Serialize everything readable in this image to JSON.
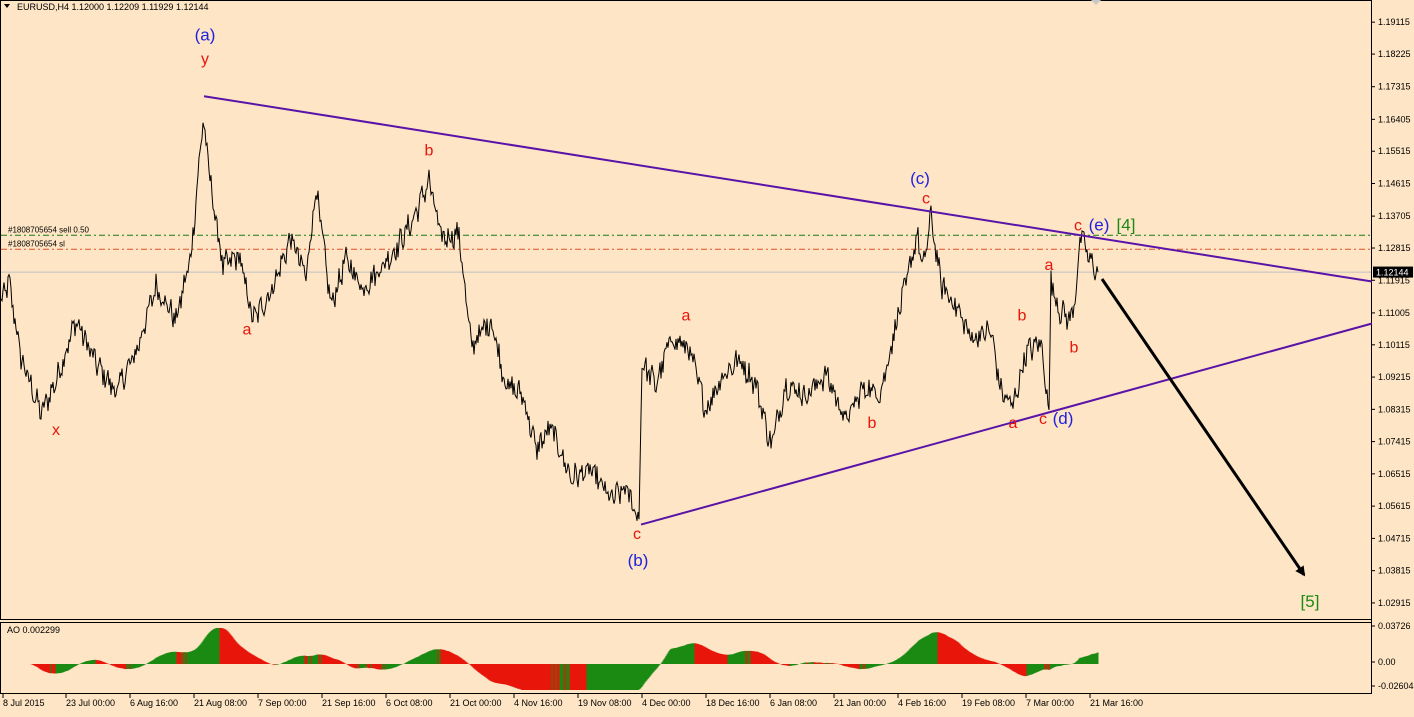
{
  "header": {
    "symbol": "EURUSD,H4",
    "open": "1.12000",
    "high": "1.12209",
    "low": "1.11929",
    "close": "1.12144"
  },
  "levels": {
    "sell_label": "#1808705654 sell 0.50",
    "sl_label": "#1808705654 sl",
    "current_price_tag": "1.12144"
  },
  "oscillator": {
    "title": "AO 0.002299",
    "ticks": [
      "0.03726",
      "0.00",
      "-0.02604"
    ]
  },
  "chart_data": {
    "type": "line",
    "title": "EURUSD,H4",
    "y_ticks": [
      "1.19115",
      "1.18225",
      "1.17315",
      "1.16405",
      "1.15515",
      "1.14615",
      "1.13705",
      "1.12815",
      "1.11915",
      "1.11005",
      "1.10115",
      "1.09215",
      "1.08315",
      "1.07415",
      "1.06515",
      "1.05615",
      "1.04715",
      "1.03815",
      "1.02915"
    ],
    "x_ticks": [
      "8 Jul 2015",
      "23 Jul 00:00",
      "6 Aug 16:00",
      "21 Aug 08:00",
      "7 Sep 00:00",
      "21 Sep 16:00",
      "6 Oct 08:00",
      "21 Oct 00:00",
      "4 Nov 16:00",
      "19 Nov 08:00",
      "4 Dec 00:00",
      "18 Dec 16:00",
      "6 Jan 08:00",
      "21 Jan 00:00",
      "4 Feb 16:00",
      "19 Feb 08:00",
      "7 Mar 00:00",
      "21 Mar 16:00"
    ],
    "ylim": [
      1.0255,
      1.1965
    ],
    "current_price": 1.12144,
    "sell_level": 1.1317,
    "sl_level": 1.1278,
    "anchors": [
      {
        "i": 0,
        "v": 1.113
      },
      {
        "i": 8,
        "v": 1.1185
      },
      {
        "i": 20,
        "v": 1.0975
      },
      {
        "i": 40,
        "v": 1.082
      },
      {
        "i": 55,
        "v": 1.091
      },
      {
        "i": 75,
        "v": 1.108
      },
      {
        "i": 95,
        "v": 1.096
      },
      {
        "i": 115,
        "v": 1.088
      },
      {
        "i": 135,
        "v": 1.099
      },
      {
        "i": 155,
        "v": 1.1175
      },
      {
        "i": 175,
        "v": 1.108
      },
      {
        "i": 190,
        "v": 1.126
      },
      {
        "i": 202,
        "v": 1.164
      },
      {
        "i": 212,
        "v": 1.141
      },
      {
        "i": 222,
        "v": 1.123
      },
      {
        "i": 238,
        "v": 1.126
      },
      {
        "i": 252,
        "v": 1.108
      },
      {
        "i": 270,
        "v": 1.116
      },
      {
        "i": 290,
        "v": 1.131
      },
      {
        "i": 305,
        "v": 1.12
      },
      {
        "i": 315,
        "v": 1.145
      },
      {
        "i": 330,
        "v": 1.112
      },
      {
        "i": 345,
        "v": 1.125
      },
      {
        "i": 362,
        "v": 1.117
      },
      {
        "i": 378,
        "v": 1.122
      },
      {
        "i": 395,
        "v": 1.128
      },
      {
        "i": 412,
        "v": 1.136
      },
      {
        "i": 428,
        "v": 1.147
      },
      {
        "i": 440,
        "v": 1.131
      },
      {
        "i": 458,
        "v": 1.132
      },
      {
        "i": 470,
        "v": 1.101
      },
      {
        "i": 490,
        "v": 1.108
      },
      {
        "i": 505,
        "v": 1.09
      },
      {
        "i": 522,
        "v": 1.087
      },
      {
        "i": 535,
        "v": 1.072
      },
      {
        "i": 550,
        "v": 1.078
      },
      {
        "i": 570,
        "v": 1.064
      },
      {
        "i": 590,
        "v": 1.066
      },
      {
        "i": 610,
        "v": 1.058
      },
      {
        "i": 625,
        "v": 1.061
      },
      {
        "i": 638,
        "v": 1.0525
      },
      {
        "i": 641,
        "v": 1.096
      },
      {
        "i": 655,
        "v": 1.09
      },
      {
        "i": 670,
        "v": 1.103
      },
      {
        "i": 688,
        "v": 1.1
      },
      {
        "i": 705,
        "v": 1.083
      },
      {
        "i": 720,
        "v": 1.092
      },
      {
        "i": 738,
        "v": 1.097
      },
      {
        "i": 755,
        "v": 1.09
      },
      {
        "i": 770,
        "v": 1.073
      },
      {
        "i": 785,
        "v": 1.09
      },
      {
        "i": 805,
        "v": 1.087
      },
      {
        "i": 825,
        "v": 1.093
      },
      {
        "i": 845,
        "v": 1.08
      },
      {
        "i": 862,
        "v": 1.089
      },
      {
        "i": 880,
        "v": 1.088
      },
      {
        "i": 895,
        "v": 1.107
      },
      {
        "i": 905,
        "v": 1.118
      },
      {
        "i": 916,
        "v": 1.132
      },
      {
        "i": 922,
        "v": 1.122
      },
      {
        "i": 930,
        "v": 1.137
      },
      {
        "i": 940,
        "v": 1.118
      },
      {
        "i": 955,
        "v": 1.112
      },
      {
        "i": 970,
        "v": 1.103
      },
      {
        "i": 990,
        "v": 1.105
      },
      {
        "i": 1000,
        "v": 1.088
      },
      {
        "i": 1012,
        "v": 1.084
      },
      {
        "i": 1025,
        "v": 1.099
      },
      {
        "i": 1040,
        "v": 1.102
      },
      {
        "i": 1048,
        "v": 1.083
      },
      {
        "i": 1050,
        "v": 1.119
      },
      {
        "i": 1058,
        "v": 1.111
      },
      {
        "i": 1070,
        "v": 1.108
      },
      {
        "i": 1075,
        "v": 1.117
      },
      {
        "i": 1080,
        "v": 1.132
      },
      {
        "i": 1088,
        "v": 1.125
      },
      {
        "i": 1097,
        "v": 1.1214
      }
    ],
    "trendlines": [
      {
        "from": {
          "i": 203,
          "v": 1.1705
        },
        "to": {
          "i": 1371,
          "v": 1.1188
        }
      },
      {
        "from": {
          "i": 640,
          "v": 1.051
        },
        "to": {
          "i": 1371,
          "v": 1.1071
        }
      }
    ],
    "projection_arrow": {
      "from": {
        "i": 1101,
        "v": 1.1195
      },
      "to": {
        "i": 1303,
        "v": 1.037
      }
    },
    "annotations": [
      {
        "text": "(a)",
        "color": "blue",
        "i": 204,
        "v": 1.186
      },
      {
        "text": "y",
        "color": "red",
        "i": 204,
        "v": 1.1795
      },
      {
        "text": "x",
        "color": "red",
        "i": 55,
        "v": 1.076
      },
      {
        "text": "a",
        "color": "red",
        "i": 246,
        "v": 1.104
      },
      {
        "text": "b",
        "color": "red",
        "i": 428,
        "v": 1.154
      },
      {
        "text": "a",
        "color": "red",
        "i": 685,
        "v": 1.108
      },
      {
        "text": "c",
        "color": "red",
        "i": 636,
        "v": 1.047
      },
      {
        "text": "(b)",
        "color": "blue",
        "i": 637,
        "v": 1.0395
      },
      {
        "text": "b",
        "color": "red",
        "i": 871,
        "v": 1.078
      },
      {
        "text": "(c)",
        "color": "blue",
        "i": 919,
        "v": 1.146
      },
      {
        "text": "c",
        "color": "red",
        "i": 925,
        "v": 1.1405
      },
      {
        "text": "b",
        "color": "red",
        "i": 1021,
        "v": 1.108
      },
      {
        "text": "a",
        "color": "red",
        "i": 1048,
        "v": 1.122
      },
      {
        "text": "b",
        "color": "red",
        "i": 1073,
        "v": 1.099
      },
      {
        "text": "a",
        "color": "red",
        "i": 1012,
        "v": 1.078
      },
      {
        "text": "c",
        "color": "red",
        "i": 1042,
        "v": 1.079
      },
      {
        "text": "(d)",
        "color": "blue",
        "i": 1062,
        "v": 1.079
      },
      {
        "text": "c",
        "color": "red",
        "i": 1077,
        "v": 1.133
      },
      {
        "text": "(e)",
        "color": "blue",
        "i": 1098,
        "v": 1.133
      },
      {
        "text": "[4]",
        "color": "green",
        "i": 1125,
        "v": 1.133
      },
      {
        "text": "[5]",
        "color": "green",
        "i": 1309,
        "v": 1.028
      }
    ]
  }
}
